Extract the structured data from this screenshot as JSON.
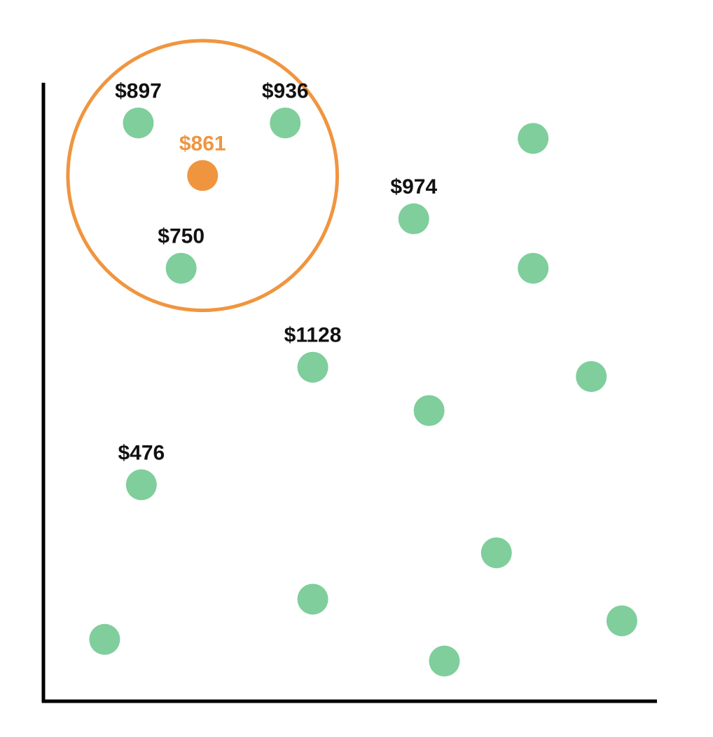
{
  "chart_data": {
    "type": "scatter",
    "title": "",
    "xlabel": "",
    "ylabel": "",
    "xlim": [
      0,
      100
    ],
    "ylim": [
      0,
      100
    ],
    "grid": false,
    "legend": "none",
    "colors": {
      "point": "#7fce9c",
      "highlight": "#f0953f",
      "label": "#111111",
      "axis": "#000000"
    },
    "highlight": {
      "x": 26,
      "y": 85,
      "label": "$861",
      "neighbor_radius": 22
    },
    "points": [
      {
        "x": 15.5,
        "y": 93.5,
        "label": "$897"
      },
      {
        "x": 39.5,
        "y": 93.5,
        "label": "$936"
      },
      {
        "x": 80,
        "y": 91,
        "label": ""
      },
      {
        "x": 60.5,
        "y": 78,
        "label": "$974"
      },
      {
        "x": 22.5,
        "y": 70,
        "label": "$750"
      },
      {
        "x": 80,
        "y": 70,
        "label": ""
      },
      {
        "x": 44,
        "y": 54,
        "label": "$1128"
      },
      {
        "x": 89.5,
        "y": 52.5,
        "label": ""
      },
      {
        "x": 63,
        "y": 47,
        "label": ""
      },
      {
        "x": 16,
        "y": 35,
        "label": "$476"
      },
      {
        "x": 74,
        "y": 24,
        "label": ""
      },
      {
        "x": 44,
        "y": 16.5,
        "label": ""
      },
      {
        "x": 10,
        "y": 10,
        "label": ""
      },
      {
        "x": 94.5,
        "y": 13,
        "label": ""
      },
      {
        "x": 65.5,
        "y": 6.5,
        "label": ""
      }
    ]
  }
}
